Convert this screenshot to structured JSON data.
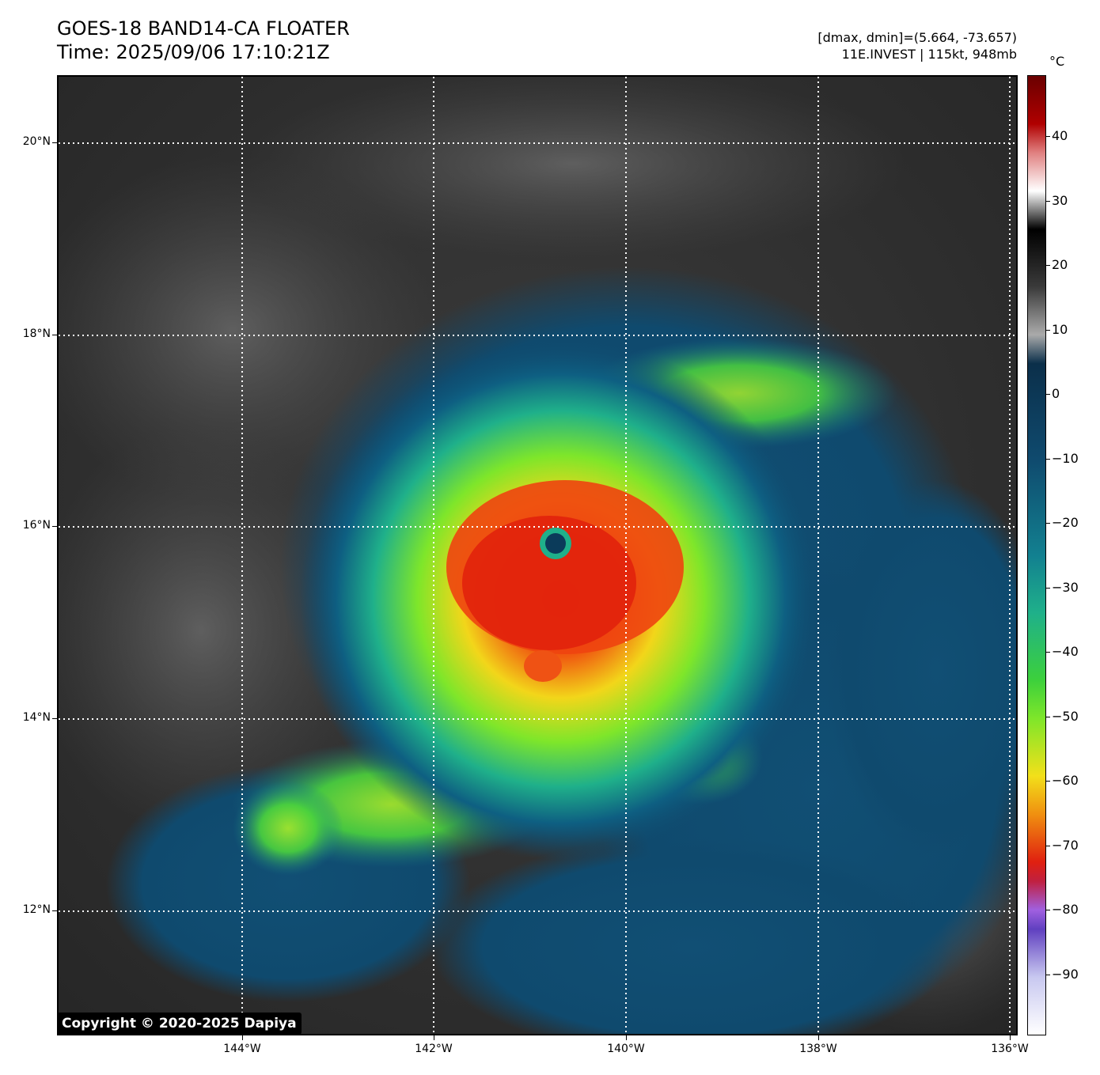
{
  "header": {
    "title": "GOES-18 BAND14-CA FLOATER",
    "time": "Time: 2025/09/06 17:10:21Z",
    "range_info": "[dmax, dmin]=(5.664, -73.657)",
    "storm_info": "11E.INVEST | 115kt, 948mb"
  },
  "map": {
    "lat_labels": [
      "20°N",
      "18°N",
      "16°N",
      "14°N",
      "12°N"
    ],
    "lon_labels": [
      "144°W",
      "142°W",
      "140°W",
      "138°W",
      "136°W"
    ],
    "copyright": "Copyright © 2020-2025 Dapiya",
    "eye_color": "#0b3b5a",
    "core_color": "#e8280e",
    "ocean_color": "#0f4a6e"
  },
  "colorbar": {
    "unit": "°C",
    "labels": [
      "40",
      "30",
      "20",
      "10",
      "0",
      "−10",
      "−20",
      "−30",
      "−40",
      "−50",
      "−60",
      "−70",
      "−80",
      "−90"
    ]
  }
}
